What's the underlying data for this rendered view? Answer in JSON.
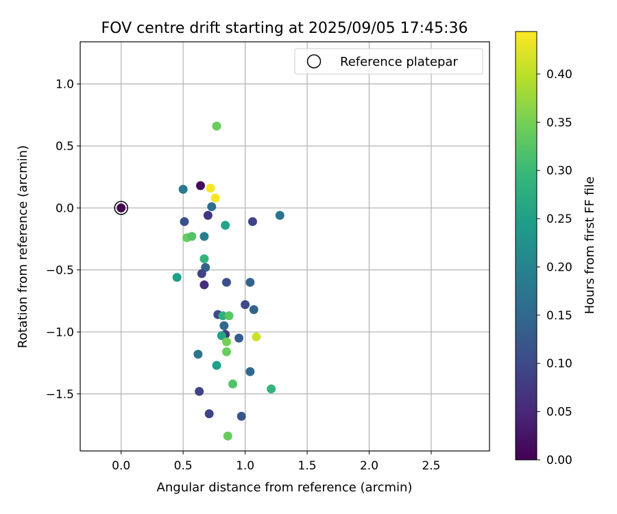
{
  "chart_data": {
    "type": "scatter",
    "title": "FOV centre drift starting at 2025/09/05 17:45:36",
    "xlabel": "Angular distance from reference (arcmin)",
    "ylabel": "Rotation from reference (arcmin)",
    "xlim": [
      -0.33,
      2.97
    ],
    "ylim": [
      -1.96,
      1.34
    ],
    "xticks": [
      0.0,
      0.5,
      1.0,
      1.5,
      2.0,
      2.5
    ],
    "xtick_labels": [
      "0.0",
      "0.5",
      "1.0",
      "1.5",
      "2.0",
      "2.5"
    ],
    "yticks": [
      1.0,
      0.5,
      0.0,
      -0.5,
      -1.0,
      -1.5
    ],
    "ytick_labels": [
      "1.0",
      "0.5",
      "0.0",
      "−0.5",
      "−1.0",
      "−1.5"
    ],
    "grid": true,
    "legend": {
      "position": "top-right",
      "label": "Reference platepar"
    },
    "reference": {
      "x": 0.0,
      "y": 0.0,
      "t": 0.0
    },
    "colorbar": {
      "label": "Hours from first FF file",
      "min": 0.0,
      "max": 0.444,
      "ticks": [
        0.0,
        0.05,
        0.1,
        0.15,
        0.2,
        0.25,
        0.3,
        0.35,
        0.4
      ],
      "tick_labels": [
        "0.00",
        "0.05",
        "0.10",
        "0.15",
        "0.20",
        "0.25",
        "0.30",
        "0.35",
        "0.40"
      ],
      "colormap": "viridis",
      "stops": [
        "#440154",
        "#482878",
        "#3e4989",
        "#31688e",
        "#26828e",
        "#1f9e89",
        "#35b779",
        "#6ece58",
        "#b5de2b",
        "#fde725"
      ]
    },
    "points": [
      {
        "x": 0.0,
        "y": 0.0,
        "t": 0.0
      },
      {
        "x": 0.64,
        "y": 0.18,
        "t": 0.01
      },
      {
        "x": 0.72,
        "y": 0.16,
        "t": 0.44
      },
      {
        "x": 0.76,
        "y": 0.08,
        "t": 0.44
      },
      {
        "x": 0.77,
        "y": 0.66,
        "t": 0.34
      },
      {
        "x": 0.5,
        "y": 0.15,
        "t": 0.18
      },
      {
        "x": 0.73,
        "y": 0.01,
        "t": 0.16
      },
      {
        "x": 0.51,
        "y": -0.11,
        "t": 0.11
      },
      {
        "x": 0.7,
        "y": -0.06,
        "t": 0.07
      },
      {
        "x": 0.84,
        "y": -0.14,
        "t": 0.26
      },
      {
        "x": 1.06,
        "y": -0.11,
        "t": 0.09
      },
      {
        "x": 1.28,
        "y": -0.06,
        "t": 0.17
      },
      {
        "x": 0.53,
        "y": -0.24,
        "t": 0.34
      },
      {
        "x": 0.57,
        "y": -0.23,
        "t": 0.32
      },
      {
        "x": 0.67,
        "y": -0.23,
        "t": 0.19
      },
      {
        "x": 0.67,
        "y": -0.41,
        "t": 0.29
      },
      {
        "x": 0.68,
        "y": -0.48,
        "t": 0.14
      },
      {
        "x": 0.65,
        "y": -0.53,
        "t": 0.09
      },
      {
        "x": 0.67,
        "y": -0.62,
        "t": 0.06
      },
      {
        "x": 0.45,
        "y": -0.56,
        "t": 0.25
      },
      {
        "x": 0.85,
        "y": -0.6,
        "t": 0.11
      },
      {
        "x": 1.04,
        "y": -0.6,
        "t": 0.14
      },
      {
        "x": 1.0,
        "y": -0.78,
        "t": 0.1
      },
      {
        "x": 1.07,
        "y": -0.82,
        "t": 0.14
      },
      {
        "x": 0.78,
        "y": -0.86,
        "t": 0.1
      },
      {
        "x": 0.82,
        "y": -0.87,
        "t": 0.28
      },
      {
        "x": 0.87,
        "y": -0.87,
        "t": 0.33
      },
      {
        "x": 0.83,
        "y": -0.95,
        "t": 0.15
      },
      {
        "x": 0.84,
        "y": -1.02,
        "t": 0.07
      },
      {
        "x": 0.81,
        "y": -1.03,
        "t": 0.26
      },
      {
        "x": 0.95,
        "y": -1.05,
        "t": 0.13
      },
      {
        "x": 1.09,
        "y": -1.04,
        "t": 0.41
      },
      {
        "x": 0.85,
        "y": -1.08,
        "t": 0.35
      },
      {
        "x": 0.85,
        "y": -1.16,
        "t": 0.34
      },
      {
        "x": 0.62,
        "y": -1.18,
        "t": 0.17
      },
      {
        "x": 0.77,
        "y": -1.27,
        "t": 0.25
      },
      {
        "x": 1.04,
        "y": -1.32,
        "t": 0.15
      },
      {
        "x": 0.9,
        "y": -1.42,
        "t": 0.32
      },
      {
        "x": 1.21,
        "y": -1.46,
        "t": 0.29
      },
      {
        "x": 0.63,
        "y": -1.48,
        "t": 0.09
      },
      {
        "x": 0.71,
        "y": -1.66,
        "t": 0.09
      },
      {
        "x": 0.97,
        "y": -1.68,
        "t": 0.12
      },
      {
        "x": 0.86,
        "y": -1.84,
        "t": 0.34
      }
    ]
  }
}
